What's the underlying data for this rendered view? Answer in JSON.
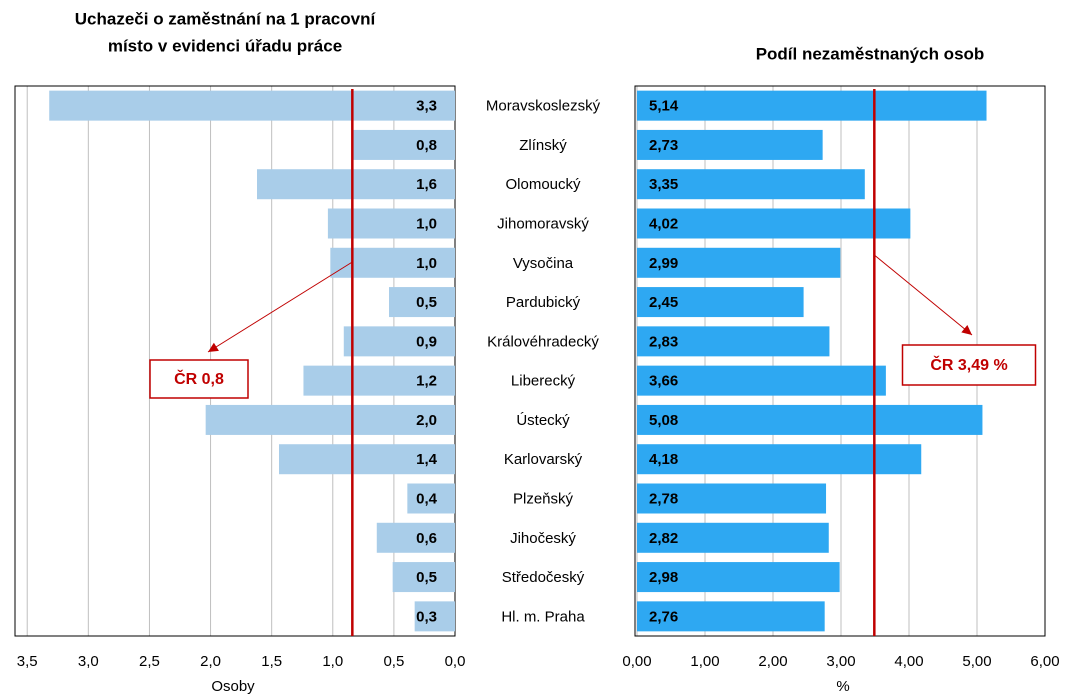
{
  "chart_data": [
    {
      "type": "bar",
      "orientation": "horizontal",
      "x_reversed": true,
      "title_lines": [
        "Uchazeči o zaměstnání na 1 pracovní",
        "místo v evidenci úřadu práce"
      ],
      "xlabel": "Osoby",
      "categories": [
        "Moravskoslezský",
        "Zlínský",
        "Olomoucký",
        "Jihomoravský",
        "Vysočina",
        "Pardubický",
        "Královéhradecký",
        "Liberecký",
        "Ústecký",
        "Karlovarský",
        "Plzeňský",
        "Jihočeský",
        "Středočeský",
        "Hl. m. Praha"
      ],
      "values": [
        3.32,
        0.84,
        1.62,
        1.04,
        1.02,
        0.54,
        0.91,
        1.24,
        2.04,
        1.44,
        0.39,
        0.64,
        0.51,
        0.33
      ],
      "value_labels": [
        "3,3",
        "0,8",
        "1,6",
        "1,0",
        "1,0",
        "0,5",
        "0,9",
        "1,2",
        "2,0",
        "1,4",
        "0,4",
        "0,6",
        "0,5",
        "0,3"
      ],
      "color": "#a9cde9",
      "xlim": [
        0,
        3.6
      ],
      "xticks": [
        {
          "value": 0,
          "label": "0,0"
        },
        {
          "value": 0.5,
          "label": "0,5"
        },
        {
          "value": 1,
          "label": "1,0"
        },
        {
          "value": 1.5,
          "label": "1,5"
        },
        {
          "value": 2,
          "label": "2,0"
        },
        {
          "value": 2.5,
          "label": "2,5"
        },
        {
          "value": 3,
          "label": "3,0"
        },
        {
          "value": 3.5,
          "label": "3,5"
        }
      ],
      "grid": true,
      "reference": {
        "value": 0.84,
        "label": "ČR 0,8",
        "color": "#c00000"
      }
    },
    {
      "type": "bar",
      "orientation": "horizontal",
      "x_reversed": false,
      "title_lines": [
        "Podíl nezaměstnaných osob"
      ],
      "xlabel": "%",
      "values": [
        5.14,
        2.73,
        3.35,
        4.02,
        2.99,
        2.45,
        2.83,
        3.66,
        5.08,
        4.18,
        2.78,
        2.82,
        2.98,
        2.76
      ],
      "value_labels": [
        "5,14",
        "2,73",
        "3,35",
        "4,02",
        "2,99",
        "2,45",
        "2,83",
        "3,66",
        "5,08",
        "4,18",
        "2,78",
        "2,82",
        "2,98",
        "2,76"
      ],
      "color": "#2ea8f2",
      "xlim": [
        0,
        6
      ],
      "xticks": [
        {
          "value": 0,
          "label": "0,00"
        },
        {
          "value": 1,
          "label": "1,00"
        },
        {
          "value": 2,
          "label": "2,00"
        },
        {
          "value": 3,
          "label": "3,00"
        },
        {
          "value": 4,
          "label": "4,00"
        },
        {
          "value": 5,
          "label": "5,00"
        },
        {
          "value": 6,
          "label": "6,00"
        }
      ],
      "grid": true,
      "reference": {
        "value": 3.49,
        "label": "ČR 3,49 %",
        "color": "#c00000"
      }
    }
  ]
}
